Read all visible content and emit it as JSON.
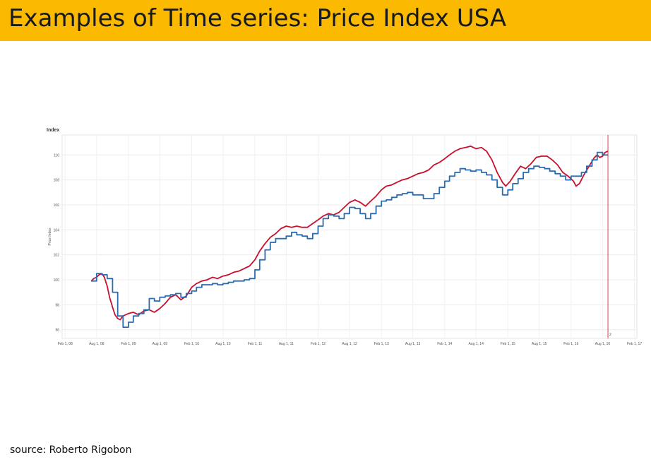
{
  "slide": {
    "title": "Examples of Time series: Price Index USA",
    "source": "source:  Roberto Rigobon"
  },
  "colors": {
    "title_bar": "#FBBA00",
    "series_daily": "#C8102E",
    "series_monthly": "#2B6CB0",
    "marker_line": "#C8102E"
  },
  "chart_data": {
    "type": "line",
    "ytitle": "Index",
    "ylabel": "Price Index",
    "ylim": [
      95.3,
      111.6
    ],
    "yticks": [
      96,
      98,
      100,
      102,
      104,
      106,
      108,
      110
    ],
    "xlim": [
      "2008-01-15",
      "2017-02-15"
    ],
    "xticks": [
      {
        "date": "2008-02-01",
        "label": "Feb 1, 08"
      },
      {
        "date": "2008-08-01",
        "label": "Aug 1, 08"
      },
      {
        "date": "2009-02-01",
        "label": "Feb 1, 09"
      },
      {
        "date": "2009-08-01",
        "label": "Aug 1, 09"
      },
      {
        "date": "2010-02-01",
        "label": "Feb 1, 10"
      },
      {
        "date": "2010-08-01",
        "label": "Aug 1, 10"
      },
      {
        "date": "2011-02-01",
        "label": "Feb 1, 11"
      },
      {
        "date": "2011-08-01",
        "label": "Aug 1, 11"
      },
      {
        "date": "2012-02-01",
        "label": "Feb 1, 12"
      },
      {
        "date": "2012-08-01",
        "label": "Aug 1, 12"
      },
      {
        "date": "2013-02-01",
        "label": "Feb 1, 13"
      },
      {
        "date": "2013-08-01",
        "label": "Aug 1, 13"
      },
      {
        "date": "2014-02-01",
        "label": "Feb 1, 14"
      },
      {
        "date": "2014-08-01",
        "label": "Aug 1, 14"
      },
      {
        "date": "2015-02-01",
        "label": "Feb 1, 15"
      },
      {
        "date": "2015-08-01",
        "label": "Aug 1, 15"
      },
      {
        "date": "2016-02-01",
        "label": "Feb 1, 16"
      },
      {
        "date": "2016-08-01",
        "label": "Aug 1, 16"
      },
      {
        "date": "2017-02-01",
        "label": "Feb 1, 17"
      }
    ],
    "grid": true,
    "marker": {
      "date": "2016-09-01",
      "label": "2"
    },
    "series": [
      {
        "color": "#C8102E",
        "style": "line",
        "points": [
          [
            "2008-07-01",
            99.9
          ],
          [
            "2008-07-15",
            100.1
          ],
          [
            "2008-08-01",
            100.2
          ],
          [
            "2008-08-15",
            100.4
          ],
          [
            "2008-09-01",
            100.5
          ],
          [
            "2008-09-15",
            100.2
          ],
          [
            "2008-10-01",
            99.5
          ],
          [
            "2008-10-15",
            98.6
          ],
          [
            "2008-11-01",
            97.8
          ],
          [
            "2008-11-15",
            97.2
          ],
          [
            "2008-12-01",
            96.9
          ],
          [
            "2008-12-15",
            96.8
          ],
          [
            "2009-01-01",
            97.1
          ],
          [
            "2009-02-01",
            97.3
          ],
          [
            "2009-03-01",
            97.4
          ],
          [
            "2009-04-01",
            97.2
          ],
          [
            "2009-05-01",
            97.5
          ],
          [
            "2009-06-01",
            97.6
          ],
          [
            "2009-07-01",
            97.4
          ],
          [
            "2009-08-01",
            97.7
          ],
          [
            "2009-09-01",
            98.1
          ],
          [
            "2009-10-01",
            98.6
          ],
          [
            "2009-11-01",
            98.8
          ],
          [
            "2009-12-01",
            98.4
          ],
          [
            "2010-01-01",
            98.7
          ],
          [
            "2010-02-01",
            99.4
          ],
          [
            "2010-03-01",
            99.7
          ],
          [
            "2010-04-01",
            99.9
          ],
          [
            "2010-05-01",
            100.0
          ],
          [
            "2010-06-01",
            100.2
          ],
          [
            "2010-07-01",
            100.1
          ],
          [
            "2010-08-01",
            100.3
          ],
          [
            "2010-09-01",
            100.4
          ],
          [
            "2010-10-01",
            100.6
          ],
          [
            "2010-11-01",
            100.7
          ],
          [
            "2010-12-01",
            100.9
          ],
          [
            "2011-01-01",
            101.1
          ],
          [
            "2011-02-01",
            101.6
          ],
          [
            "2011-03-01",
            102.3
          ],
          [
            "2011-04-01",
            102.9
          ],
          [
            "2011-05-01",
            103.4
          ],
          [
            "2011-06-01",
            103.7
          ],
          [
            "2011-07-01",
            104.1
          ],
          [
            "2011-08-01",
            104.3
          ],
          [
            "2011-09-01",
            104.2
          ],
          [
            "2011-10-01",
            104.3
          ],
          [
            "2011-11-01",
            104.2
          ],
          [
            "2011-12-01",
            104.2
          ],
          [
            "2012-01-01",
            104.5
          ],
          [
            "2012-02-01",
            104.8
          ],
          [
            "2012-03-01",
            105.1
          ],
          [
            "2012-04-01",
            105.3
          ],
          [
            "2012-05-01",
            105.2
          ],
          [
            "2012-06-01",
            105.4
          ],
          [
            "2012-07-01",
            105.8
          ],
          [
            "2012-08-01",
            106.2
          ],
          [
            "2012-09-01",
            106.4
          ],
          [
            "2012-10-01",
            106.2
          ],
          [
            "2012-11-01",
            105.9
          ],
          [
            "2012-12-01",
            106.3
          ],
          [
            "2013-01-01",
            106.7
          ],
          [
            "2013-02-01",
            107.2
          ],
          [
            "2013-03-01",
            107.5
          ],
          [
            "2013-04-01",
            107.6
          ],
          [
            "2013-05-01",
            107.8
          ],
          [
            "2013-06-01",
            108.0
          ],
          [
            "2013-07-01",
            108.1
          ],
          [
            "2013-08-01",
            108.3
          ],
          [
            "2013-09-01",
            108.5
          ],
          [
            "2013-10-01",
            108.6
          ],
          [
            "2013-11-01",
            108.8
          ],
          [
            "2013-12-01",
            109.2
          ],
          [
            "2014-01-01",
            109.4
          ],
          [
            "2014-02-01",
            109.7
          ],
          [
            "2014-03-01",
            110.0
          ],
          [
            "2014-04-01",
            110.3
          ],
          [
            "2014-05-01",
            110.5
          ],
          [
            "2014-06-01",
            110.6
          ],
          [
            "2014-07-01",
            110.7
          ],
          [
            "2014-08-01",
            110.5
          ],
          [
            "2014-09-01",
            110.6
          ],
          [
            "2014-10-01",
            110.3
          ],
          [
            "2014-11-01",
            109.6
          ],
          [
            "2014-12-01",
            108.6
          ],
          [
            "2015-01-01",
            107.8
          ],
          [
            "2015-01-20",
            107.5
          ],
          [
            "2015-02-15",
            107.9
          ],
          [
            "2015-03-15",
            108.5
          ],
          [
            "2015-04-15",
            109.1
          ],
          [
            "2015-05-15",
            108.9
          ],
          [
            "2015-06-15",
            109.3
          ],
          [
            "2015-07-15",
            109.8
          ],
          [
            "2015-08-15",
            109.9
          ],
          [
            "2015-09-15",
            109.9
          ],
          [
            "2015-10-15",
            109.6
          ],
          [
            "2015-11-15",
            109.2
          ],
          [
            "2015-12-15",
            108.6
          ],
          [
            "2016-01-15",
            108.3
          ],
          [
            "2016-02-15",
            107.9
          ],
          [
            "2016-03-01",
            107.5
          ],
          [
            "2016-03-20",
            107.7
          ],
          [
            "2016-04-15",
            108.4
          ],
          [
            "2016-05-15",
            109.1
          ],
          [
            "2016-06-15",
            109.8
          ],
          [
            "2016-07-01",
            110.0
          ],
          [
            "2016-07-15",
            109.8
          ],
          [
            "2016-08-01",
            109.9
          ],
          [
            "2016-08-15",
            110.2
          ],
          [
            "2016-09-01",
            110.3
          ]
        ]
      },
      {
        "color": "#2B6CB0",
        "style": "step",
        "points": [
          [
            "2008-07-01",
            99.9
          ],
          [
            "2008-08-01",
            100.5
          ],
          [
            "2008-09-01",
            100.4
          ],
          [
            "2008-10-01",
            100.1
          ],
          [
            "2008-11-01",
            99.0
          ],
          [
            "2008-12-01",
            97.1
          ],
          [
            "2009-01-01",
            96.2
          ],
          [
            "2009-02-01",
            96.6
          ],
          [
            "2009-03-01",
            97.1
          ],
          [
            "2009-04-01",
            97.3
          ],
          [
            "2009-05-01",
            97.6
          ],
          [
            "2009-06-01",
            98.5
          ],
          [
            "2009-07-01",
            98.3
          ],
          [
            "2009-08-01",
            98.6
          ],
          [
            "2009-09-01",
            98.7
          ],
          [
            "2009-10-01",
            98.8
          ],
          [
            "2009-11-01",
            98.9
          ],
          [
            "2009-12-01",
            98.6
          ],
          [
            "2010-01-01",
            98.9
          ],
          [
            "2010-02-01",
            99.1
          ],
          [
            "2010-03-01",
            99.4
          ],
          [
            "2010-04-01",
            99.6
          ],
          [
            "2010-05-01",
            99.6
          ],
          [
            "2010-06-01",
            99.7
          ],
          [
            "2010-07-01",
            99.6
          ],
          [
            "2010-08-01",
            99.7
          ],
          [
            "2010-09-01",
            99.8
          ],
          [
            "2010-10-01",
            99.9
          ],
          [
            "2010-11-01",
            99.9
          ],
          [
            "2010-12-01",
            100.0
          ],
          [
            "2011-01-01",
            100.1
          ],
          [
            "2011-02-01",
            100.8
          ],
          [
            "2011-03-01",
            101.6
          ],
          [
            "2011-04-01",
            102.4
          ],
          [
            "2011-05-01",
            103.0
          ],
          [
            "2011-06-01",
            103.3
          ],
          [
            "2011-07-01",
            103.3
          ],
          [
            "2011-08-01",
            103.5
          ],
          [
            "2011-09-01",
            103.8
          ],
          [
            "2011-10-01",
            103.6
          ],
          [
            "2011-11-01",
            103.5
          ],
          [
            "2011-12-01",
            103.3
          ],
          [
            "2012-01-01",
            103.7
          ],
          [
            "2012-02-01",
            104.3
          ],
          [
            "2012-03-01",
            104.9
          ],
          [
            "2012-04-01",
            105.2
          ],
          [
            "2012-05-01",
            105.1
          ],
          [
            "2012-06-01",
            104.9
          ],
          [
            "2012-07-01",
            105.3
          ],
          [
            "2012-08-01",
            105.8
          ],
          [
            "2012-09-01",
            105.7
          ],
          [
            "2012-10-01",
            105.3
          ],
          [
            "2012-11-01",
            104.9
          ],
          [
            "2012-12-01",
            105.3
          ],
          [
            "2013-01-01",
            105.9
          ],
          [
            "2013-02-01",
            106.3
          ],
          [
            "2013-03-01",
            106.4
          ],
          [
            "2013-04-01",
            106.6
          ],
          [
            "2013-05-01",
            106.8
          ],
          [
            "2013-06-01",
            106.9
          ],
          [
            "2013-07-01",
            107.0
          ],
          [
            "2013-08-01",
            106.8
          ],
          [
            "2013-09-01",
            106.8
          ],
          [
            "2013-10-01",
            106.5
          ],
          [
            "2013-11-01",
            106.5
          ],
          [
            "2013-12-01",
            106.9
          ],
          [
            "2014-01-01",
            107.4
          ],
          [
            "2014-02-01",
            107.9
          ],
          [
            "2014-03-01",
            108.3
          ],
          [
            "2014-04-01",
            108.6
          ],
          [
            "2014-05-01",
            108.9
          ],
          [
            "2014-06-01",
            108.8
          ],
          [
            "2014-07-01",
            108.7
          ],
          [
            "2014-08-01",
            108.8
          ],
          [
            "2014-09-01",
            108.6
          ],
          [
            "2014-10-01",
            108.4
          ],
          [
            "2014-11-01",
            108.0
          ],
          [
            "2014-12-01",
            107.4
          ],
          [
            "2015-01-01",
            106.8
          ],
          [
            "2015-02-01",
            107.2
          ],
          [
            "2015-03-01",
            107.7
          ],
          [
            "2015-04-01",
            108.1
          ],
          [
            "2015-05-01",
            108.6
          ],
          [
            "2015-06-01",
            108.9
          ],
          [
            "2015-07-01",
            109.1
          ],
          [
            "2015-08-01",
            109.0
          ],
          [
            "2015-09-01",
            108.9
          ],
          [
            "2015-10-01",
            108.7
          ],
          [
            "2015-11-01",
            108.5
          ],
          [
            "2015-12-01",
            108.3
          ],
          [
            "2016-01-01",
            108.0
          ],
          [
            "2016-02-01",
            108.3
          ],
          [
            "2016-03-01",
            108.3
          ],
          [
            "2016-04-01",
            108.6
          ],
          [
            "2016-05-01",
            109.1
          ],
          [
            "2016-06-01",
            109.6
          ],
          [
            "2016-07-01",
            110.2
          ],
          [
            "2016-08-01",
            110.0
          ]
        ]
      }
    ]
  }
}
